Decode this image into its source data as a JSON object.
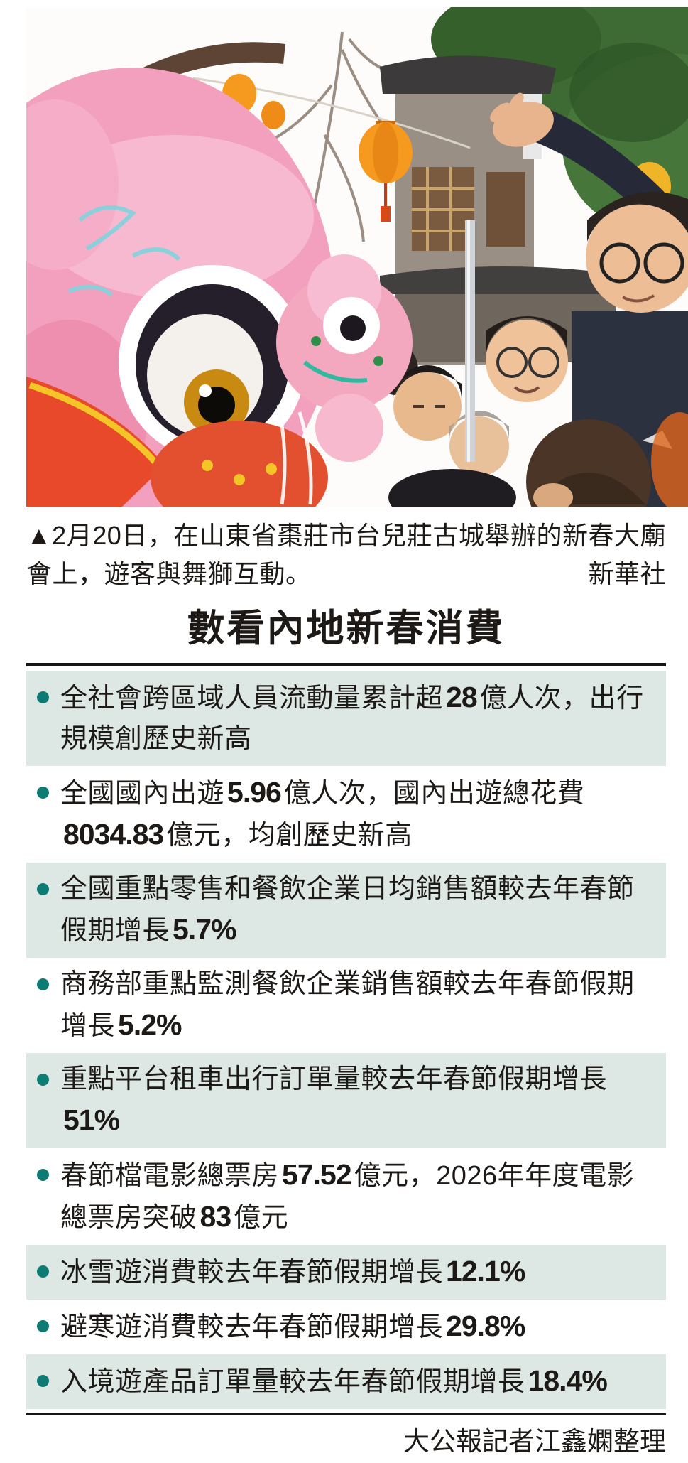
{
  "caption": {
    "marker": "▲",
    "text": "2月20日，在山東省棗莊市台兒莊古城舉辦的新春大廟會上，遊客與舞獅互動。",
    "credit": "新華社"
  },
  "infographic": {
    "title": "數看內地新春消費",
    "accent_color": "#0e7a74",
    "row_shaded_color": "#dde8e4",
    "rule_color": "#161616",
    "items": [
      {
        "shaded": true,
        "segments": [
          {
            "text": "全社會跨區域人員流動量累計超"
          },
          {
            "text": "28",
            "bold": true
          },
          {
            "text": "億人次，出行規模創歷史新高"
          }
        ]
      },
      {
        "shaded": false,
        "segments": [
          {
            "text": "全國國內出遊"
          },
          {
            "text": "5.96",
            "bold": true
          },
          {
            "text": "億人次，國內出遊總花費"
          },
          {
            "text": "8034.83",
            "bold": true
          },
          {
            "text": "億元，均創歷史新高"
          }
        ]
      },
      {
        "shaded": true,
        "segments": [
          {
            "text": "全國重點零售和餐飲企業日均銷售額較去年春節假期增長"
          },
          {
            "text": "5.7%",
            "bold": true
          }
        ]
      },
      {
        "shaded": false,
        "segments": [
          {
            "text": "商務部重點監測餐飲企業銷售額較去年春節假期增長"
          },
          {
            "text": "5.2%",
            "bold": true
          }
        ]
      },
      {
        "shaded": true,
        "segments": [
          {
            "text": "重點平台租車出行訂單量較去年春節假期增長"
          },
          {
            "text": "51%",
            "bold": true
          }
        ]
      },
      {
        "shaded": false,
        "segments": [
          {
            "text": "春節檔電影總票房"
          },
          {
            "text": "57.52",
            "bold": true
          },
          {
            "text": "億元，2026年年度電影總票房突破"
          },
          {
            "text": "83",
            "bold": true
          },
          {
            "text": "億元"
          }
        ]
      },
      {
        "shaded": true,
        "segments": [
          {
            "text": "冰雪遊消費較去年春節假期增長"
          },
          {
            "text": "12.1%",
            "bold": true
          }
        ]
      },
      {
        "shaded": false,
        "segments": [
          {
            "text": "避寒遊消費較去年春節假期增長"
          },
          {
            "text": "29.8%",
            "bold": true
          }
        ]
      },
      {
        "shaded": true,
        "segments": [
          {
            "text": "入境遊產品訂單量較去年春節假期增長"
          },
          {
            "text": "18.4%",
            "bold": true
          }
        ]
      }
    ],
    "source": "大公報記者江鑫嫻整理"
  }
}
